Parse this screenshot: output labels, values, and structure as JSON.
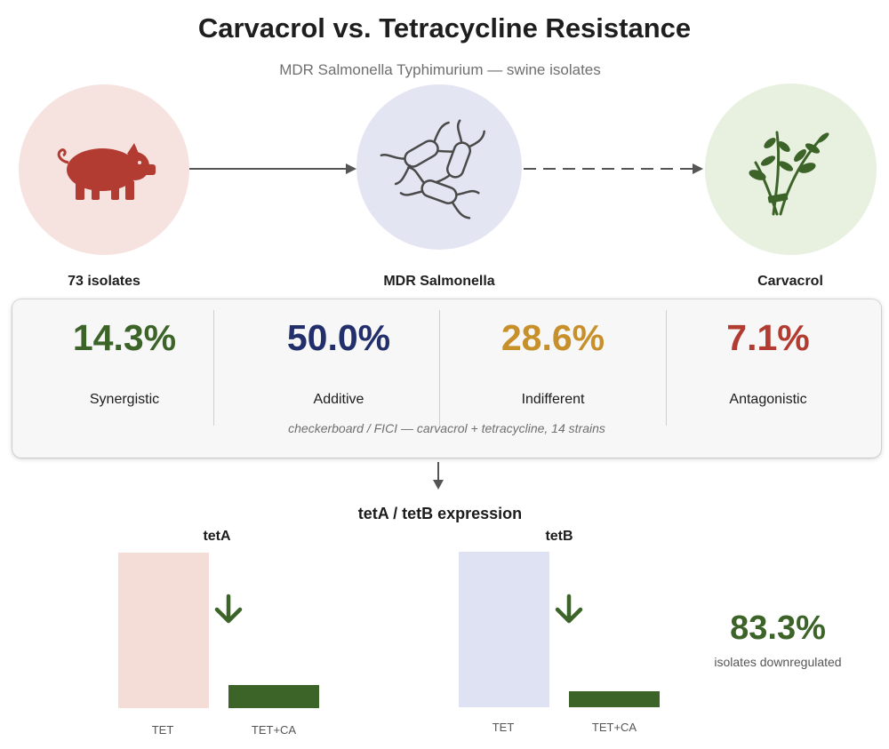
{
  "header": {
    "title": "Carvacrol vs. Tetracycline Resistance",
    "subtitle": "MDR Salmonella Typhimurium — swine isolates"
  },
  "nodes": [
    {
      "label": "73 isolates",
      "icon": "pig-icon",
      "color": "#b23b32"
    },
    {
      "label": "MDR Salmonella",
      "icon": "bacteria-icon",
      "color": "#4a4a4a"
    },
    {
      "label": "Carvacrol",
      "icon": "herb-icon",
      "color": "#3c6328"
    }
  ],
  "interactions": {
    "items": [
      {
        "value": "14.3%",
        "label": "Synergistic",
        "color": "#3c6328"
      },
      {
        "value": "50.0%",
        "label": "Additive",
        "color": "#232f6b"
      },
      {
        "value": "28.6%",
        "label": "Indifferent",
        "color": "#c7902a"
      },
      {
        "value": "7.1%",
        "label": "Antagonistic",
        "color": "#b23b32"
      }
    ],
    "note": "checkerboard / FICI — carvacrol + tetracycline, 14 strains"
  },
  "expression": {
    "title": "tetA / tetB expression",
    "genes": [
      {
        "name": "tetA",
        "categories": [
          "TET",
          "TET+CA"
        ],
        "values": [
          100,
          15
        ],
        "colors": [
          "#f4dcd7",
          "#3c6328"
        ]
      },
      {
        "name": "tetB",
        "categories": [
          "TET",
          "TET+CA"
        ],
        "values": [
          100,
          10
        ],
        "colors": [
          "#dfe2f2",
          "#3c6328"
        ]
      }
    ],
    "summary_value": "83.3%",
    "summary_label": "isolates downregulated"
  }
}
